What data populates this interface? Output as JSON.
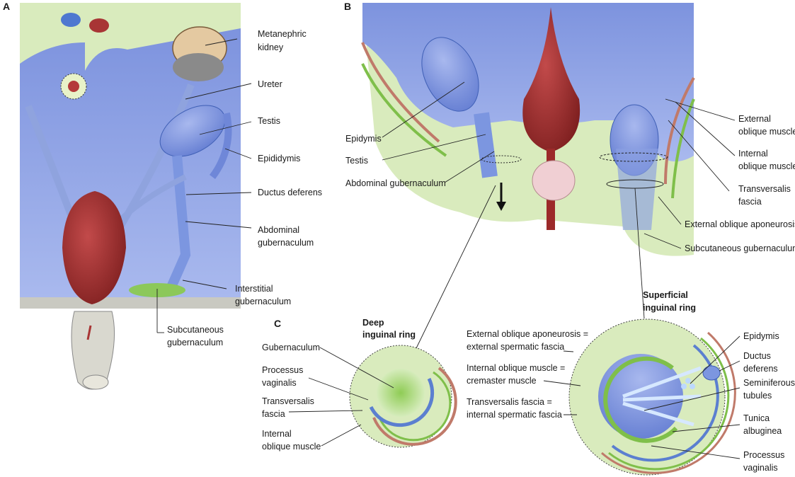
{
  "panels": {
    "a": "A",
    "b": "B",
    "c": "C"
  },
  "panel_a": {
    "metanephric_kidney": [
      "Metanephric",
      "kidney"
    ],
    "ureter": "Ureter",
    "testis": "Testis",
    "epididymis": "Epididymis",
    "ductus_deferens": "Ductus deferens",
    "abdominal_gubernaculum": [
      "Abdominal",
      "gubernaculum"
    ],
    "interstitial_gubernaculum": [
      "Interstitial",
      "gubernaculum"
    ],
    "subcutaneous_gubernaculum": [
      "Subcutaneous",
      "gubernaculum"
    ]
  },
  "panel_b": {
    "epidymis": "Epidymis",
    "testis": "Testis",
    "abdominal_gubernaculum": "Abdominal gubernaculum",
    "external_oblique_muscle": [
      "External",
      "oblique muscle"
    ],
    "internal_oblique_muscle": [
      "Internal",
      "oblique muscle"
    ],
    "transversalis_fascia": [
      "Transversalis",
      "fascia"
    ],
    "external_oblique_aponeurosis": "External oblique aponeurosis",
    "subcutaneous_gubernaculum": "Subcutaneous gubernaculum"
  },
  "panel_c": {
    "deep_ring_title": [
      "Deep",
      "inguinal ring"
    ],
    "superficial_ring_title": [
      "Superficial",
      "inguinal ring"
    ],
    "gubernaculum": "Gubernaculum",
    "processus_vaginalis_left": [
      "Processus",
      "vaginalis"
    ],
    "transversalis_fascia": [
      "Transversalis",
      "fascia"
    ],
    "internal_oblique_muscle": [
      "Internal",
      "oblique muscle"
    ],
    "eoa_eq": [
      "External oblique aponeurosis =",
      "external spermatic fascia"
    ],
    "iom_eq": [
      "Internal oblique muscle =",
      "cremaster muscle"
    ],
    "tf_eq": [
      "Transversalis fascia =",
      "internal spermatic fascia"
    ],
    "epidymis": "Epidymis",
    "ductus_deferens": [
      "Ductus",
      "deferens"
    ],
    "seminiferous_tubules": [
      "Seminiferous",
      "tubules"
    ],
    "tunica_albuginea": [
      "Tunica",
      "albuginea"
    ],
    "processus_vaginalis_right": [
      "Processus",
      "vaginalis"
    ]
  },
  "colors": {
    "body_green": "#dcebc0",
    "peritoneum_blue": "#6f87d8",
    "organ_blue": "#5b7fd0",
    "bladder_red": "#9c2a2a",
    "fascia_red": "#c07a6a",
    "muscle_green": "#7fbf4a"
  }
}
